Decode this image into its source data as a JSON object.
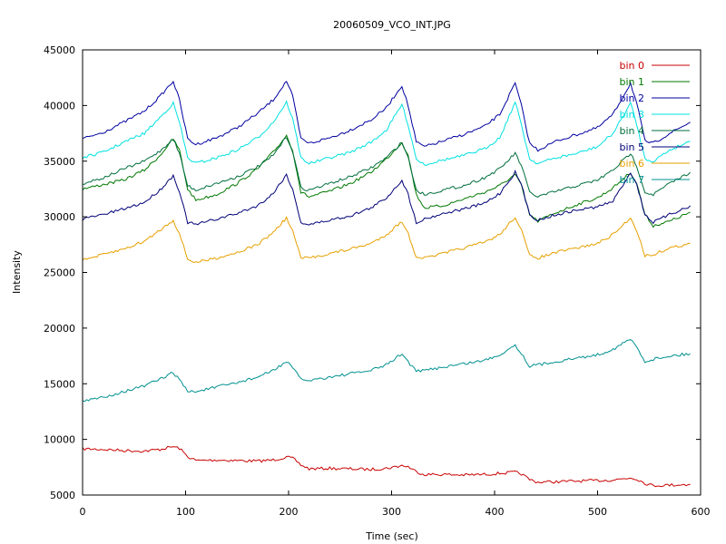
{
  "chart_data": {
    "type": "line",
    "title": "20060509_VCO_INT.JPG",
    "xlabel": "Time (sec)",
    "ylabel": "Intensity",
    "xlim": [
      0,
      600
    ],
    "ylim": [
      5000,
      45000
    ],
    "xticks": [
      0,
      100,
      200,
      300,
      400,
      500,
      600
    ],
    "yticks": [
      5000,
      10000,
      15000,
      20000,
      25000,
      30000,
      35000,
      40000,
      45000
    ],
    "grid": false,
    "legend_position": "top-right",
    "x": [
      0,
      20,
      40,
      60,
      75,
      88,
      94,
      102,
      110,
      130,
      150,
      170,
      185,
      198,
      204,
      212,
      220,
      240,
      260,
      280,
      295,
      310,
      316,
      324,
      332,
      350,
      370,
      390,
      405,
      420,
      426,
      434,
      442,
      460,
      480,
      500,
      515,
      532,
      538,
      546,
      554,
      570,
      590
    ],
    "series": [
      {
        "name": "bin 0",
        "color": "#c80000",
        "values": [
          9150,
          9100,
          9000,
          8950,
          9100,
          9350,
          9200,
          8450,
          8100,
          8150,
          8100,
          8050,
          8150,
          8400,
          8300,
          7700,
          7350,
          7400,
          7350,
          7300,
          7400,
          7650,
          7550,
          7100,
          6850,
          6850,
          6800,
          6850,
          6950,
          7050,
          6900,
          6400,
          6150,
          6200,
          6250,
          6300,
          6350,
          6550,
          6450,
          6050,
          5850,
          5900,
          5950
        ]
      },
      {
        "name": "bin 1",
        "color": "#007800",
        "values": [
          32500,
          32900,
          33300,
          34200,
          35500,
          37000,
          36000,
          32500,
          31500,
          32000,
          33000,
          34300,
          35800,
          37300,
          36000,
          32200,
          31800,
          32300,
          33000,
          34000,
          35200,
          36700,
          35500,
          32000,
          30800,
          31000,
          31600,
          32200,
          32800,
          33800,
          32800,
          30200,
          29600,
          30400,
          31100,
          31700,
          32600,
          34000,
          33000,
          30200,
          29200,
          29600,
          30400
        ]
      },
      {
        "name": "bin 2",
        "color": "#0000a0",
        "values": [
          37000,
          37600,
          38500,
          39500,
          40800,
          42200,
          40500,
          37000,
          36500,
          37100,
          38000,
          39300,
          40500,
          42200,
          40800,
          37000,
          36600,
          37100,
          37800,
          38700,
          39800,
          41800,
          40000,
          36700,
          36300,
          36800,
          37400,
          38100,
          39200,
          42000,
          40000,
          36600,
          36000,
          36800,
          37400,
          38000,
          39200,
          42000,
          40200,
          36800,
          36600,
          37500,
          38500
        ]
      },
      {
        "name": "bin 3",
        "color": "#00e0e0",
        "values": [
          35300,
          35800,
          36700,
          37500,
          38900,
          40200,
          38500,
          35300,
          34800,
          35300,
          36000,
          37100,
          38500,
          40300,
          38800,
          35300,
          34800,
          35300,
          35800,
          36700,
          37800,
          40100,
          38300,
          35200,
          34700,
          35100,
          35500,
          36100,
          37100,
          40300,
          38300,
          35200,
          34800,
          35300,
          35700,
          36300,
          37500,
          40200,
          38300,
          35200,
          35000,
          36000,
          36800
        ]
      },
      {
        "name": "bin 4",
        "color": "#006e3c",
        "values": [
          33000,
          33500,
          34300,
          35000,
          35900,
          37000,
          35700,
          32800,
          32400,
          33000,
          33600,
          34500,
          35500,
          37200,
          35900,
          32600,
          32400,
          33000,
          33600,
          34400,
          35300,
          36700,
          35400,
          32400,
          32000,
          32400,
          32800,
          33500,
          34300,
          35700,
          34600,
          32200,
          31800,
          32300,
          32800,
          33300,
          34200,
          35700,
          34600,
          32200,
          32000,
          33000,
          34000
        ]
      },
      {
        "name": "bin 5",
        "color": "#000078",
        "values": [
          29800,
          30200,
          30700,
          31300,
          32400,
          33700,
          32300,
          29500,
          29300,
          29800,
          30300,
          31000,
          32100,
          33800,
          32400,
          29500,
          29300,
          29700,
          30100,
          30800,
          31700,
          33300,
          32000,
          29500,
          29800,
          30300,
          30700,
          31200,
          32100,
          34000,
          32900,
          30200,
          29700,
          30200,
          30600,
          30900,
          31400,
          34000,
          32900,
          30200,
          29500,
          30200,
          31000
        ]
      },
      {
        "name": "bin 6",
        "color": "#e6a000",
        "values": [
          26100,
          26600,
          27100,
          27800,
          28800,
          29700,
          28500,
          26200,
          25900,
          26300,
          26800,
          27500,
          28600,
          29900,
          28700,
          26300,
          26300,
          26700,
          27100,
          27600,
          28400,
          29600,
          28500,
          26400,
          26300,
          26700,
          27200,
          27700,
          28400,
          30000,
          28800,
          26500,
          26300,
          26800,
          27200,
          27600,
          28400,
          29900,
          28800,
          26500,
          26600,
          27200,
          27600
        ]
      },
      {
        "name": "bin 7",
        "color": "#009090",
        "values": [
          13400,
          13800,
          14300,
          14800,
          15400,
          16000,
          15400,
          14300,
          14300,
          14700,
          15100,
          15600,
          16200,
          17000,
          16400,
          15400,
          15300,
          15600,
          15900,
          16200,
          16700,
          17700,
          17000,
          16100,
          16200,
          16500,
          16800,
          17100,
          17600,
          18500,
          17700,
          16600,
          16700,
          17000,
          17300,
          17600,
          18100,
          19000,
          18300,
          17000,
          17200,
          17500,
          17700
        ]
      }
    ]
  }
}
